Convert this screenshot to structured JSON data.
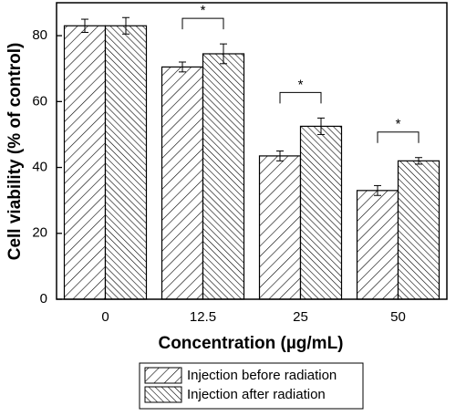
{
  "chart_data": {
    "type": "bar",
    "x_label": "Concentration (µg/mL)",
    "y_label": "Cell viability (% of control)",
    "categories": [
      "0",
      "12.5",
      "25",
      "50"
    ],
    "series": [
      {
        "name": "Injection before radiation",
        "color": "#000000",
        "hatch": "/",
        "values": [
          83,
          70.5,
          43.5,
          33
        ],
        "errors": [
          2,
          1.5,
          1.5,
          1.5
        ]
      },
      {
        "name": "Injection after radiation",
        "color": "#000000",
        "hatch": "\\",
        "values": [
          83,
          74.5,
          52.5,
          42
        ],
        "errors": [
          2.5,
          3,
          2.5,
          1
        ]
      }
    ],
    "annotations": [
      null,
      "*",
      "*",
      "*"
    ],
    "ylim": [
      0,
      90
    ],
    "yticks": [
      0,
      20,
      40,
      60,
      80
    ],
    "legend": "bottom"
  }
}
